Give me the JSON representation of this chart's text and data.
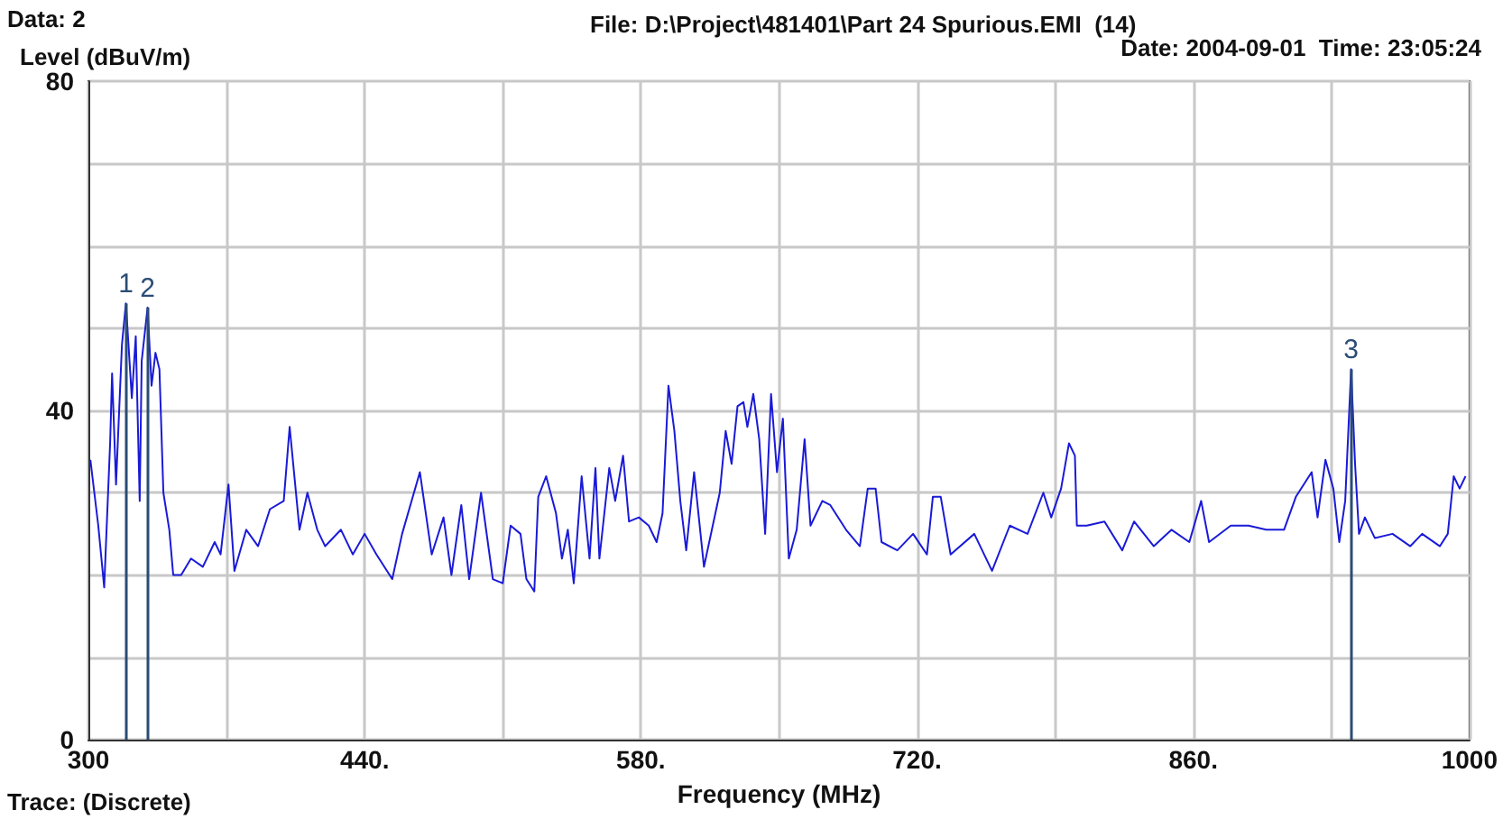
{
  "chart_data": {
    "type": "line",
    "title": "File: D:\\Project\\481401\\Part 24 Spurious.EMI  (14)",
    "xlabel": "Frequency (MHz)",
    "ylabel": "Level (dBuV/m)",
    "annotations": [
      "Data: 2",
      "Date: 2004-09-01  Time: 23:05:24",
      "Trace: (Discrete)",
      {
        "text": "1",
        "x": 319,
        "y": 53
      },
      {
        "text": "2",
        "x": 330,
        "y": 52.5
      },
      {
        "text": "3",
        "x": 940,
        "y": 45
      }
    ],
    "xlim": [
      300,
      1000
    ],
    "ylim": [
      0,
      80
    ],
    "xticks": [
      300,
      {
        "value": 370,
        "label": null
      },
      {
        "value": 440,
        "label": "440."
      },
      {
        "value": 510,
        "label": null
      },
      {
        "value": 580,
        "label": "580."
      },
      {
        "value": 650,
        "label": null
      },
      {
        "value": 720,
        "label": "720."
      },
      {
        "value": 790,
        "label": null
      },
      {
        "value": 860,
        "label": "860."
      },
      {
        "value": 930,
        "label": null
      },
      1000
    ],
    "yticks": [
      0,
      {
        "value": 10,
        "label": null
      },
      {
        "value": 20,
        "label": null
      },
      {
        "value": 30,
        "label": null
      },
      40,
      {
        "value": 50,
        "label": null
      },
      {
        "value": 60,
        "label": null
      },
      {
        "value": 70,
        "label": null
      },
      80
    ],
    "grid": true,
    "marker": "none",
    "line_style": "solid",
    "series": [
      {
        "color": "#1a1ad8",
        "x": [
          301,
          305,
          308,
          311,
          312,
          314,
          317,
          319,
          322,
          324,
          326,
          327,
          330,
          332,
          334,
          336,
          338,
          341,
          343,
          347,
          352,
          358,
          364,
          367,
          371,
          374,
          380,
          386,
          392,
          399,
          402,
          407,
          411,
          416,
          420,
          428,
          434,
          440,
          446,
          454,
          459,
          468,
          474,
          480,
          484,
          489,
          493,
          499,
          505,
          510,
          514,
          519,
          522,
          526,
          528,
          532,
          537,
          540,
          543,
          546,
          550,
          554,
          557,
          559,
          564,
          567,
          571,
          574,
          579,
          584,
          588,
          591,
          594,
          597,
          600,
          603,
          607,
          612,
          616,
          620,
          623,
          626,
          629,
          632,
          634,
          637,
          640,
          643,
          646,
          649,
          652,
          655,
          659,
          663,
          666,
          672,
          676,
          684,
          691,
          695,
          699,
          702,
          710,
          718,
          725,
          728,
          732,
          737,
          749,
          758,
          767,
          776,
          784,
          788,
          793,
          797,
          800,
          801,
          806,
          815,
          824,
          830,
          840,
          849,
          858,
          864,
          868,
          879,
          888,
          897,
          906,
          912,
          920,
          923,
          927,
          931,
          934,
          937,
          940,
          942,
          944,
          947,
          952,
          961,
          970,
          976,
          985,
          989,
          992,
          995,
          998
        ],
        "values": [
          34,
          26,
          18.5,
          36,
          44.5,
          31,
          48,
          53,
          41.5,
          49,
          29,
          46,
          52.5,
          43,
          47,
          45,
          30,
          25.5,
          20,
          20,
          22,
          21,
          24,
          22.5,
          31,
          20.5,
          25.5,
          23.5,
          28,
          29,
          38,
          25.5,
          30,
          25.5,
          23.5,
          25.5,
          22.5,
          25,
          22.5,
          19.5,
          25,
          32.5,
          22.5,
          27,
          20,
          28.5,
          19.5,
          30,
          19.5,
          19,
          26,
          25,
          19.5,
          18,
          29.5,
          32,
          27.5,
          22,
          25.5,
          19,
          32,
          22,
          33,
          22,
          33,
          29,
          34.5,
          26.5,
          27,
          26,
          24,
          27.5,
          43,
          37.5,
          29,
          23,
          32.5,
          21,
          25.5,
          30,
          37.5,
          33.5,
          40.5,
          41,
          38,
          42,
          36.5,
          25,
          42,
          32.5,
          39,
          22,
          25.5,
          36.5,
          26,
          29,
          28.5,
          25.5,
          23.5,
          30.5,
          30.5,
          24,
          23,
          25,
          22.5,
          29.5,
          29.5,
          22.5,
          25,
          20.5,
          26,
          25,
          30,
          27,
          30.5,
          36,
          34.5,
          26,
          26,
          26.5,
          23,
          26.5,
          23.5,
          25.5,
          24,
          29,
          24,
          26,
          26,
          25.5,
          25.5,
          29.5,
          32.5,
          27,
          34,
          30.5,
          24,
          29,
          45,
          33.5,
          25,
          27,
          24.5,
          25,
          23.5,
          25,
          23.5,
          25,
          32,
          30.5,
          32
        ]
      }
    ]
  }
}
